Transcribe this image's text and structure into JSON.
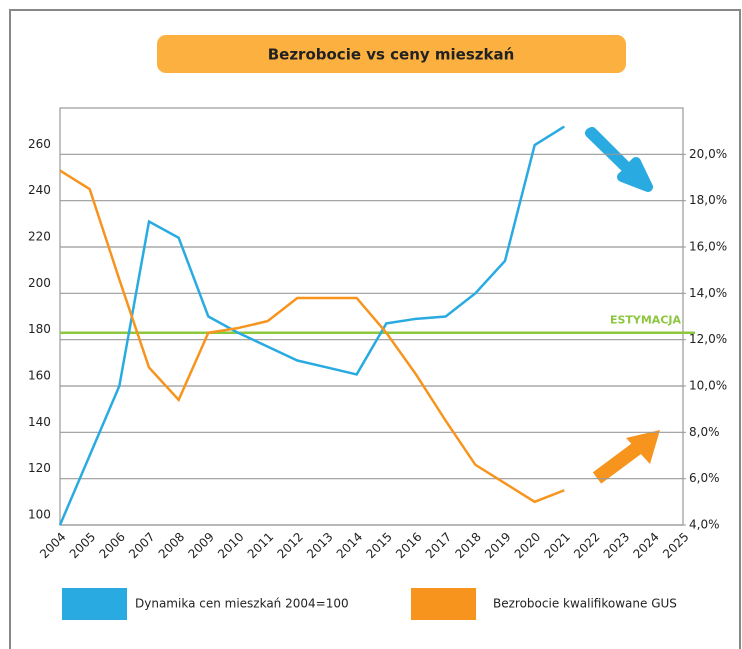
{
  "chart_data": {
    "type": "line",
    "title": "Bezrobocie vs ceny mieszkań",
    "categories": [
      "2004",
      "2005",
      "2006",
      "2007",
      "2008",
      "2009",
      "2010",
      "2011",
      "2012",
      "2013",
      "2014",
      "2015",
      "2016",
      "2017",
      "2018",
      "2019",
      "2020",
      "2021",
      "2022",
      "2023",
      "2024",
      "2025"
    ],
    "series": [
      {
        "name": "Dynamika cen mieszkań 2004=100",
        "color": "#29abe2",
        "axis": "y",
        "values": [
          100,
          130,
          160,
          231,
          224,
          190,
          183,
          177,
          171,
          168,
          165,
          187,
          189,
          190,
          200,
          214,
          264,
          272,
          null,
          null,
          null,
          null
        ]
      },
      {
        "name": "Bezrobocie kwalifikowane GUS",
        "color": "#f7941d",
        "axis": "y2",
        "values": [
          19.3,
          18.5,
          14.6,
          10.8,
          9.4,
          12.3,
          12.5,
          12.8,
          13.8,
          13.8,
          13.8,
          12.3,
          10.5,
          8.5,
          6.6,
          5.8,
          5.0,
          5.5,
          null,
          null,
          null,
          null
        ]
      }
    ],
    "ylim": [
      100,
      280
    ],
    "yticks": [
      100,
      120,
      140,
      160,
      180,
      200,
      220,
      240,
      260
    ],
    "y2lim": [
      4,
      22
    ],
    "y2ticks": [
      {
        "value": 4,
        "label": "4,0%"
      },
      {
        "value": 6,
        "label": "6,0%"
      },
      {
        "value": 8,
        "label": "8,0%"
      },
      {
        "value": 10,
        "label": "10,0%"
      },
      {
        "value": 12,
        "label": "12,0%"
      },
      {
        "value": 14,
        "label": "14,0%"
      },
      {
        "value": 16,
        "label": "16,0%"
      },
      {
        "value": 18,
        "label": "18,0%"
      },
      {
        "value": 20,
        "label": "20,0%"
      }
    ],
    "grid": true,
    "reference_line": {
      "label": "ESTYMACJA",
      "value": 183,
      "color": "#8dc63f"
    }
  }
}
